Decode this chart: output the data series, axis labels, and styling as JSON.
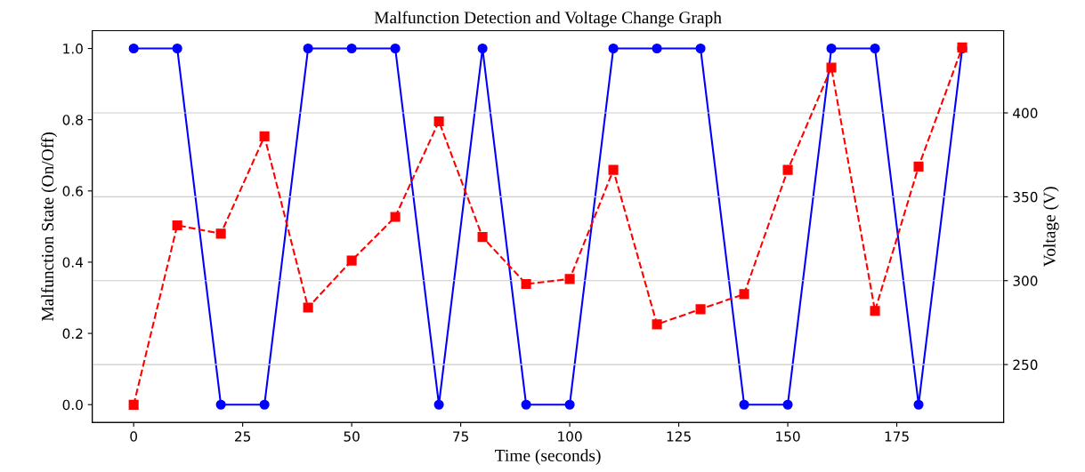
{
  "chart_data": {
    "type": "line",
    "title": "Malfunction Detection and Voltage Change Graph",
    "xlabel": "Time (seconds)",
    "ylabel": "Malfunction State (On/Off)",
    "y2label": "Voltage (V)",
    "x": [
      0,
      10,
      20,
      30,
      40,
      50,
      60,
      70,
      80,
      90,
      100,
      110,
      120,
      130,
      140,
      150,
      160,
      170,
      180,
      190
    ],
    "series": [
      {
        "color": "#0000ff",
        "marker": "circle",
        "line_style": "solid",
        "values": [
          1,
          1,
          0,
          0,
          1,
          1,
          1,
          0,
          1,
          0,
          0,
          1,
          1,
          1,
          0,
          0,
          1,
          1,
          0,
          1
        ]
      },
      {
        "color": "#ff0000",
        "marker": "square",
        "line_style": "dashed",
        "axis": "y2",
        "values": [
          226,
          333,
          328,
          386,
          284,
          312,
          338,
          395,
          326,
          298,
          301,
          366,
          274,
          283,
          292,
          366,
          427,
          282,
          368,
          439
        ]
      }
    ],
    "xlim": [
      -9.5,
      199.5
    ],
    "xticks": [
      0,
      25,
      50,
      75,
      100,
      125,
      150,
      175
    ],
    "ylim": [
      -0.05,
      1.05
    ],
    "yticks": [
      {
        "value": 0,
        "label": "0.0"
      },
      {
        "value": 0.2,
        "label": "0.2"
      },
      {
        "value": 0.4,
        "label": "0.4"
      },
      {
        "value": 0.6,
        "label": "0.6"
      },
      {
        "value": 0.8,
        "label": "0.8"
      },
      {
        "value": 1,
        "label": "1.0"
      }
    ],
    "y2lim": [
      215.5,
      449
    ],
    "y2ticks": [
      250,
      300,
      350,
      400
    ],
    "grid": "y2",
    "legend": false
  }
}
